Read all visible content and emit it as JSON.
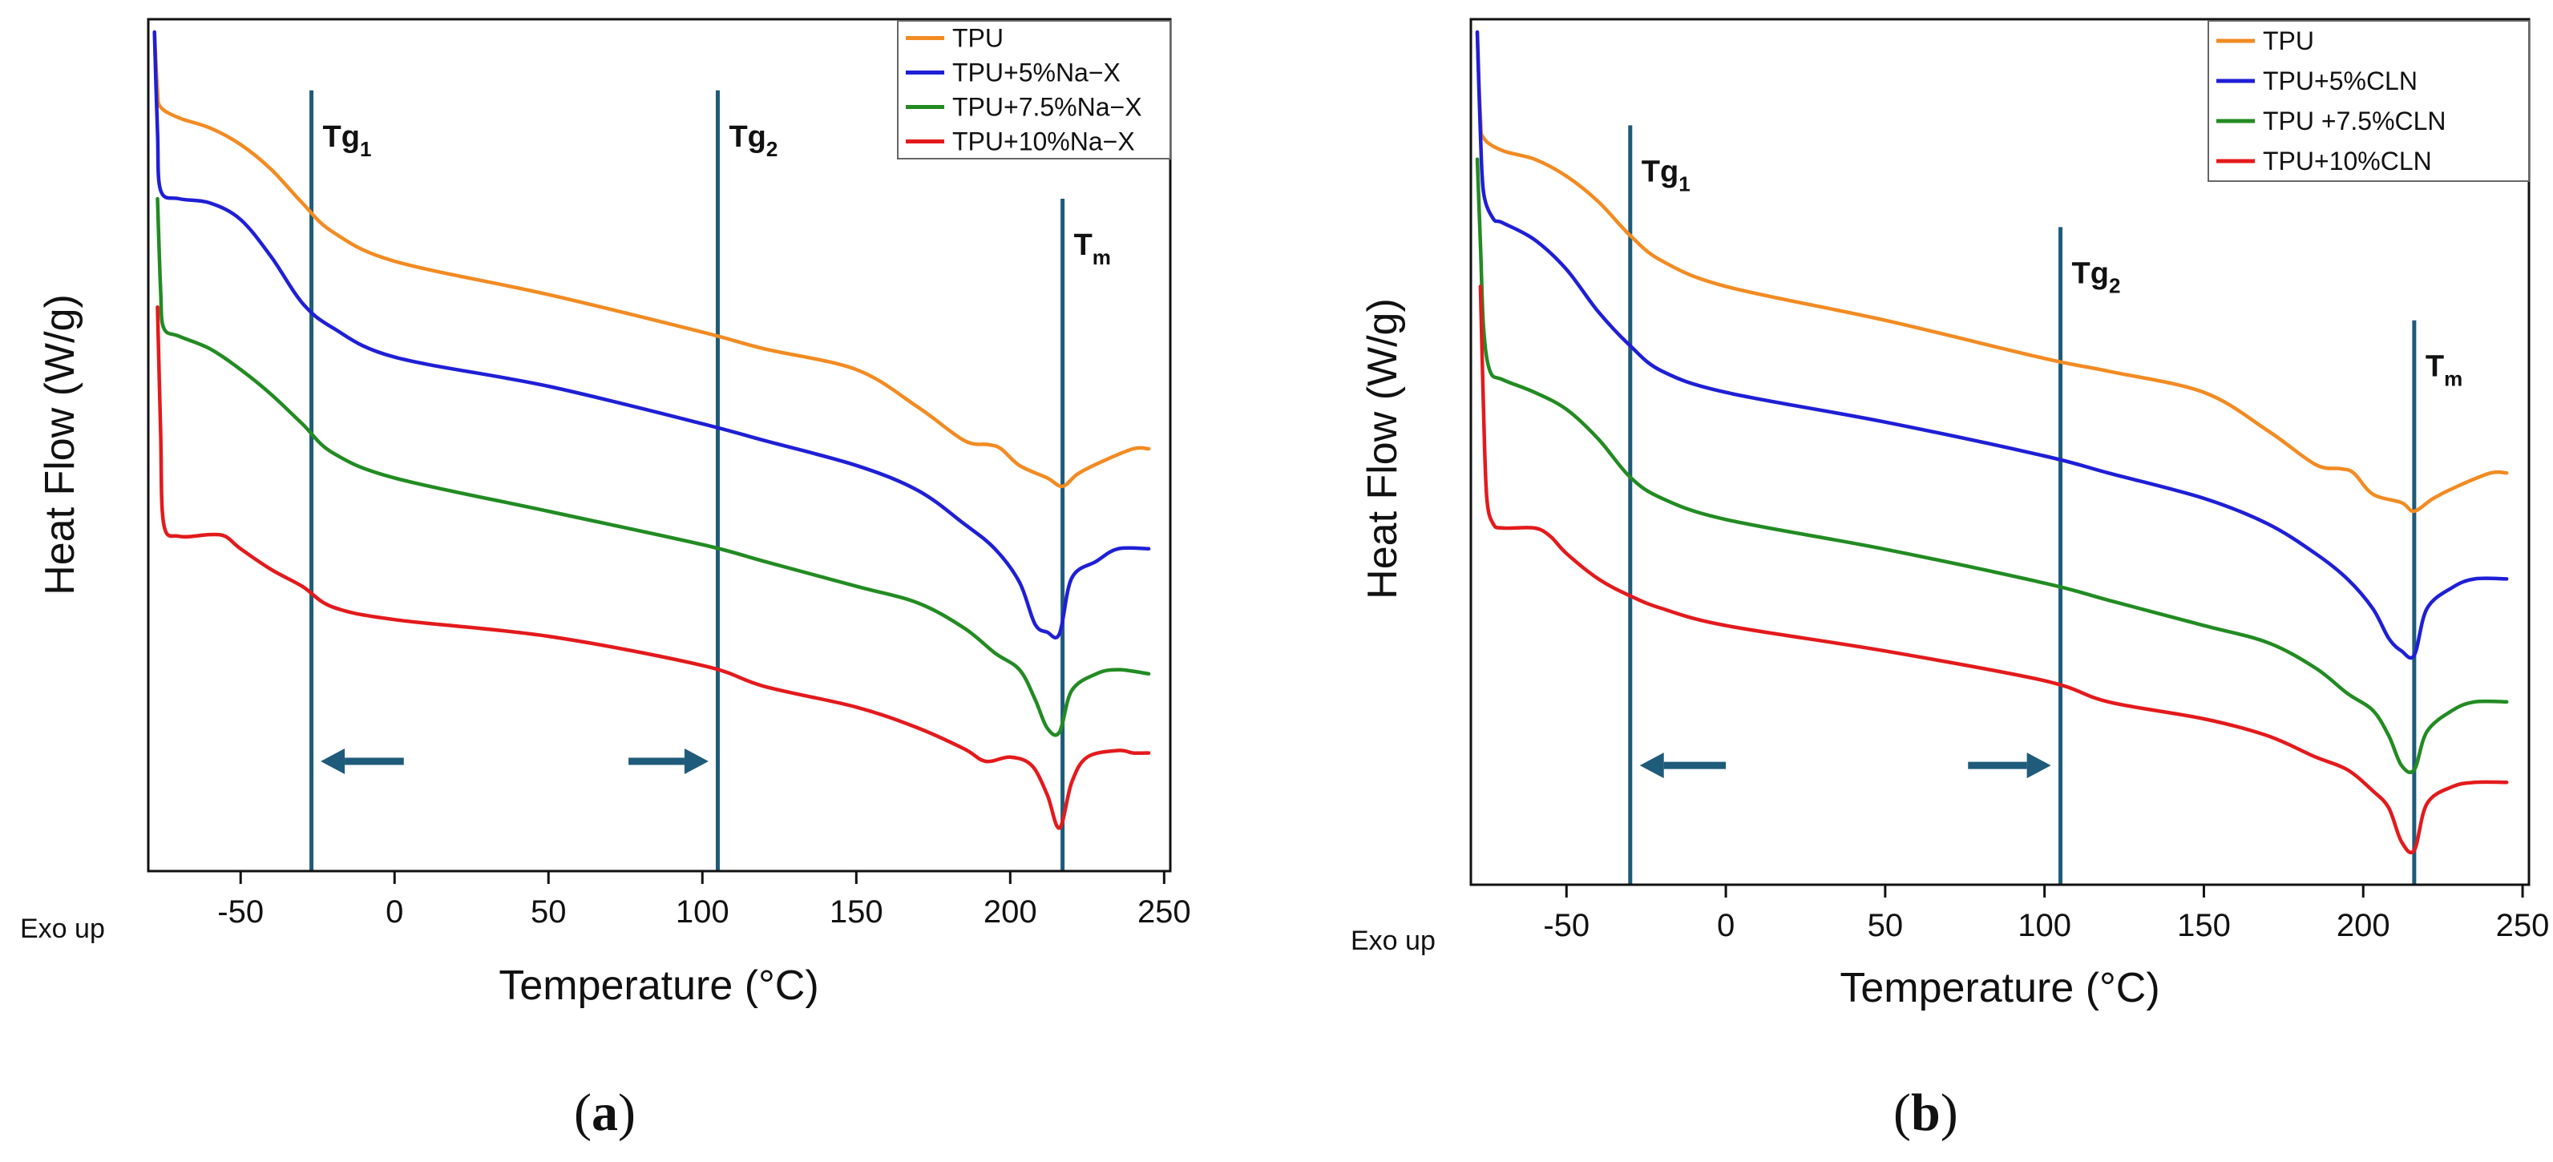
{
  "colors": {
    "TPU": "#f28b22",
    "TPU5": "#1f1fd6",
    "TPU75": "#228b22",
    "TPU10": "#e31a1c",
    "marker": "#1f5b7a"
  },
  "chart_data": [
    {
      "id": "a",
      "type": "line",
      "caption_letter": "a",
      "xlabel": "Temperature (°C)",
      "ylabel": "Heat Flow (W/g)",
      "exo_label": "Exo up",
      "xlim": [
        -80,
        252
      ],
      "xticks": [
        -50,
        0,
        50,
        100,
        150,
        200,
        250
      ],
      "legend_position": "top-right",
      "vlines": [
        {
          "x": -27,
          "label": "Tg",
          "sub": "1",
          "top": 0.07
        },
        {
          "x": 105,
          "label": "Tg",
          "sub": "2",
          "top": 0.07
        },
        {
          "x": 217,
          "label": "T",
          "sub": "m",
          "top": 0.2
        }
      ],
      "arrows": [
        {
          "from": 3,
          "to": -24,
          "y": 0.875
        },
        {
          "from": 76,
          "to": 102,
          "y": 0.875
        }
      ],
      "series": [
        {
          "name": "TPU",
          "color_key": "TPU",
          "points": [
            [
              -78,
              0.0
            ],
            [
              -77,
              0.07
            ],
            [
              -76,
              0.09
            ],
            [
              -70,
              0.103
            ],
            [
              -60,
              0.115
            ],
            [
              -50,
              0.135
            ],
            [
              -40,
              0.165
            ],
            [
              -30,
              0.205
            ],
            [
              -20,
              0.24
            ],
            [
              0,
              0.275
            ],
            [
              50,
              0.315
            ],
            [
              100,
              0.36
            ],
            [
              120,
              0.38
            ],
            [
              150,
              0.405
            ],
            [
              170,
              0.45
            ],
            [
              185,
              0.49
            ],
            [
              193,
              0.495
            ],
            [
              197,
              0.5
            ],
            [
              203,
              0.52
            ],
            [
              212,
              0.535
            ],
            [
              217,
              0.545
            ],
            [
              222,
              0.53
            ],
            [
              230,
              0.515
            ],
            [
              240,
              0.5
            ],
            [
              245,
              0.5
            ]
          ]
        },
        {
          "name": "TPU+5%Na−X",
          "color_key": "TPU5",
          "points": [
            [
              -78,
              0.0
            ],
            [
              -77,
              0.12
            ],
            [
              -76,
              0.19
            ],
            [
              -70,
              0.2
            ],
            [
              -60,
              0.205
            ],
            [
              -50,
              0.225
            ],
            [
              -40,
              0.27
            ],
            [
              -30,
              0.325
            ],
            [
              -20,
              0.355
            ],
            [
              0,
              0.39
            ],
            [
              50,
              0.425
            ],
            [
              100,
              0.47
            ],
            [
              120,
              0.49
            ],
            [
              150,
              0.52
            ],
            [
              170,
              0.55
            ],
            [
              185,
              0.59
            ],
            [
              195,
              0.62
            ],
            [
              203,
              0.66
            ],
            [
              208,
              0.71
            ],
            [
              212,
              0.72
            ],
            [
              216,
              0.722
            ],
            [
              220,
              0.655
            ],
            [
              228,
              0.635
            ],
            [
              235,
              0.62
            ],
            [
              245,
              0.62
            ]
          ]
        },
        {
          "name": "TPU+7.5%Na−X",
          "color_key": "TPU75",
          "points": [
            [
              -77,
              0.2
            ],
            [
              -76,
              0.31
            ],
            [
              -75,
              0.355
            ],
            [
              -70,
              0.365
            ],
            [
              -60,
              0.38
            ],
            [
              -50,
              0.405
            ],
            [
              -40,
              0.435
            ],
            [
              -30,
              0.47
            ],
            [
              -20,
              0.505
            ],
            [
              0,
              0.535
            ],
            [
              50,
              0.575
            ],
            [
              100,
              0.615
            ],
            [
              120,
              0.635
            ],
            [
              150,
              0.665
            ],
            [
              170,
              0.685
            ],
            [
              185,
              0.715
            ],
            [
              195,
              0.745
            ],
            [
              203,
              0.765
            ],
            [
              208,
              0.8
            ],
            [
              212,
              0.835
            ],
            [
              216,
              0.84
            ],
            [
              220,
              0.79
            ],
            [
              228,
              0.77
            ],
            [
              235,
              0.765
            ],
            [
              245,
              0.77
            ]
          ]
        },
        {
          "name": "TPU+10%Na−X",
          "color_key": "TPU10",
          "points": [
            [
              -77,
              0.33
            ],
            [
              -76,
              0.48
            ],
            [
              -75,
              0.59
            ],
            [
              -70,
              0.605
            ],
            [
              -60,
              0.603
            ],
            [
              -55,
              0.605
            ],
            [
              -50,
              0.62
            ],
            [
              -40,
              0.645
            ],
            [
              -30,
              0.665
            ],
            [
              -20,
              0.69
            ],
            [
              0,
              0.705
            ],
            [
              50,
              0.725
            ],
            [
              100,
              0.76
            ],
            [
              120,
              0.785
            ],
            [
              150,
              0.81
            ],
            [
              170,
              0.835
            ],
            [
              185,
              0.86
            ],
            [
              192,
              0.875
            ],
            [
              200,
              0.87
            ],
            [
              207,
              0.88
            ],
            [
              212,
              0.915
            ],
            [
              216,
              0.955
            ],
            [
              220,
              0.9
            ],
            [
              225,
              0.87
            ],
            [
              235,
              0.862
            ],
            [
              240,
              0.865
            ],
            [
              245,
              0.865
            ]
          ]
        }
      ]
    },
    {
      "id": "b",
      "type": "line",
      "caption_letter": "b",
      "xlabel": "Temperature (°C)",
      "ylabel": "Heat Flow (W/g)",
      "exo_label": "Exo up",
      "xlim": [
        -80,
        252
      ],
      "xticks": [
        -50,
        0,
        50,
        100,
        150,
        200,
        250
      ],
      "legend_position": "top-right",
      "vlines": [
        {
          "x": -30,
          "label": "Tg",
          "sub": "1",
          "top": 0.11
        },
        {
          "x": 105,
          "label": "Tg",
          "sub": "2",
          "top": 0.23
        },
        {
          "x": 216,
          "label": "T",
          "sub": "m",
          "top": 0.34
        }
      ],
      "arrows": [
        {
          "from": 0,
          "to": -27,
          "y": 0.865
        },
        {
          "from": 76,
          "to": 102,
          "y": 0.865
        }
      ],
      "series": [
        {
          "name": "TPU",
          "color_key": "TPU",
          "points": [
            [
              -78,
              0.0
            ],
            [
              -77,
              0.1
            ],
            [
              -76,
              0.125
            ],
            [
              -70,
              0.14
            ],
            [
              -60,
              0.15
            ],
            [
              -50,
              0.17
            ],
            [
              -40,
              0.2
            ],
            [
              -30,
              0.24
            ],
            [
              -20,
              0.27
            ],
            [
              0,
              0.3
            ],
            [
              50,
              0.34
            ],
            [
              100,
              0.385
            ],
            [
              120,
              0.4
            ],
            [
              150,
              0.425
            ],
            [
              170,
              0.47
            ],
            [
              185,
              0.51
            ],
            [
              193,
              0.515
            ],
            [
              197,
              0.52
            ],
            [
              203,
              0.545
            ],
            [
              212,
              0.555
            ],
            [
              216,
              0.565
            ],
            [
              222,
              0.55
            ],
            [
              230,
              0.535
            ],
            [
              240,
              0.52
            ],
            [
              245,
              0.52
            ]
          ]
        },
        {
          "name": "TPU+5%CLN",
          "color_key": "TPU5",
          "points": [
            [
              -78,
              0.0
            ],
            [
              -77,
              0.12
            ],
            [
              -76,
              0.19
            ],
            [
              -73,
              0.22
            ],
            [
              -70,
              0.225
            ],
            [
              -60,
              0.245
            ],
            [
              -50,
              0.28
            ],
            [
              -40,
              0.33
            ],
            [
              -30,
              0.37
            ],
            [
              -20,
              0.4
            ],
            [
              0,
              0.425
            ],
            [
              50,
              0.46
            ],
            [
              100,
              0.5
            ],
            [
              120,
              0.52
            ],
            [
              150,
              0.55
            ],
            [
              170,
              0.58
            ],
            [
              185,
              0.615
            ],
            [
              195,
              0.645
            ],
            [
              203,
              0.68
            ],
            [
              208,
              0.715
            ],
            [
              212,
              0.73
            ],
            [
              216,
              0.735
            ],
            [
              220,
              0.68
            ],
            [
              228,
              0.655
            ],
            [
              235,
              0.645
            ],
            [
              245,
              0.645
            ]
          ]
        },
        {
          "name": "TPU +7.5%CLN",
          "color_key": "TPU75",
          "points": [
            [
              -78,
              0.15
            ],
            [
              -77,
              0.25
            ],
            [
              -76,
              0.35
            ],
            [
              -74,
              0.4
            ],
            [
              -70,
              0.41
            ],
            [
              -60,
              0.425
            ],
            [
              -50,
              0.445
            ],
            [
              -40,
              0.48
            ],
            [
              -30,
              0.525
            ],
            [
              -20,
              0.55
            ],
            [
              0,
              0.575
            ],
            [
              50,
              0.61
            ],
            [
              100,
              0.65
            ],
            [
              120,
              0.67
            ],
            [
              150,
              0.7
            ],
            [
              170,
              0.72
            ],
            [
              185,
              0.75
            ],
            [
              195,
              0.78
            ],
            [
              203,
              0.8
            ],
            [
              208,
              0.83
            ],
            [
              212,
              0.865
            ],
            [
              216,
              0.87
            ],
            [
              220,
              0.825
            ],
            [
              228,
              0.8
            ],
            [
              235,
              0.79
            ],
            [
              245,
              0.79
            ]
          ]
        },
        {
          "name": "TPU+10%CLN",
          "color_key": "TPU10",
          "points": [
            [
              -77,
              0.3
            ],
            [
              -76,
              0.45
            ],
            [
              -75,
              0.55
            ],
            [
              -73,
              0.58
            ],
            [
              -70,
              0.585
            ],
            [
              -60,
              0.585
            ],
            [
              -55,
              0.595
            ],
            [
              -50,
              0.615
            ],
            [
              -40,
              0.645
            ],
            [
              -30,
              0.665
            ],
            [
              -20,
              0.68
            ],
            [
              0,
              0.7
            ],
            [
              50,
              0.73
            ],
            [
              100,
              0.765
            ],
            [
              120,
              0.79
            ],
            [
              150,
              0.81
            ],
            [
              170,
              0.83
            ],
            [
              185,
              0.855
            ],
            [
              195,
              0.87
            ],
            [
              203,
              0.895
            ],
            [
              208,
              0.915
            ],
            [
              212,
              0.955
            ],
            [
              216,
              0.965
            ],
            [
              220,
              0.91
            ],
            [
              228,
              0.89
            ],
            [
              235,
              0.885
            ],
            [
              245,
              0.885
            ]
          ]
        }
      ]
    }
  ]
}
